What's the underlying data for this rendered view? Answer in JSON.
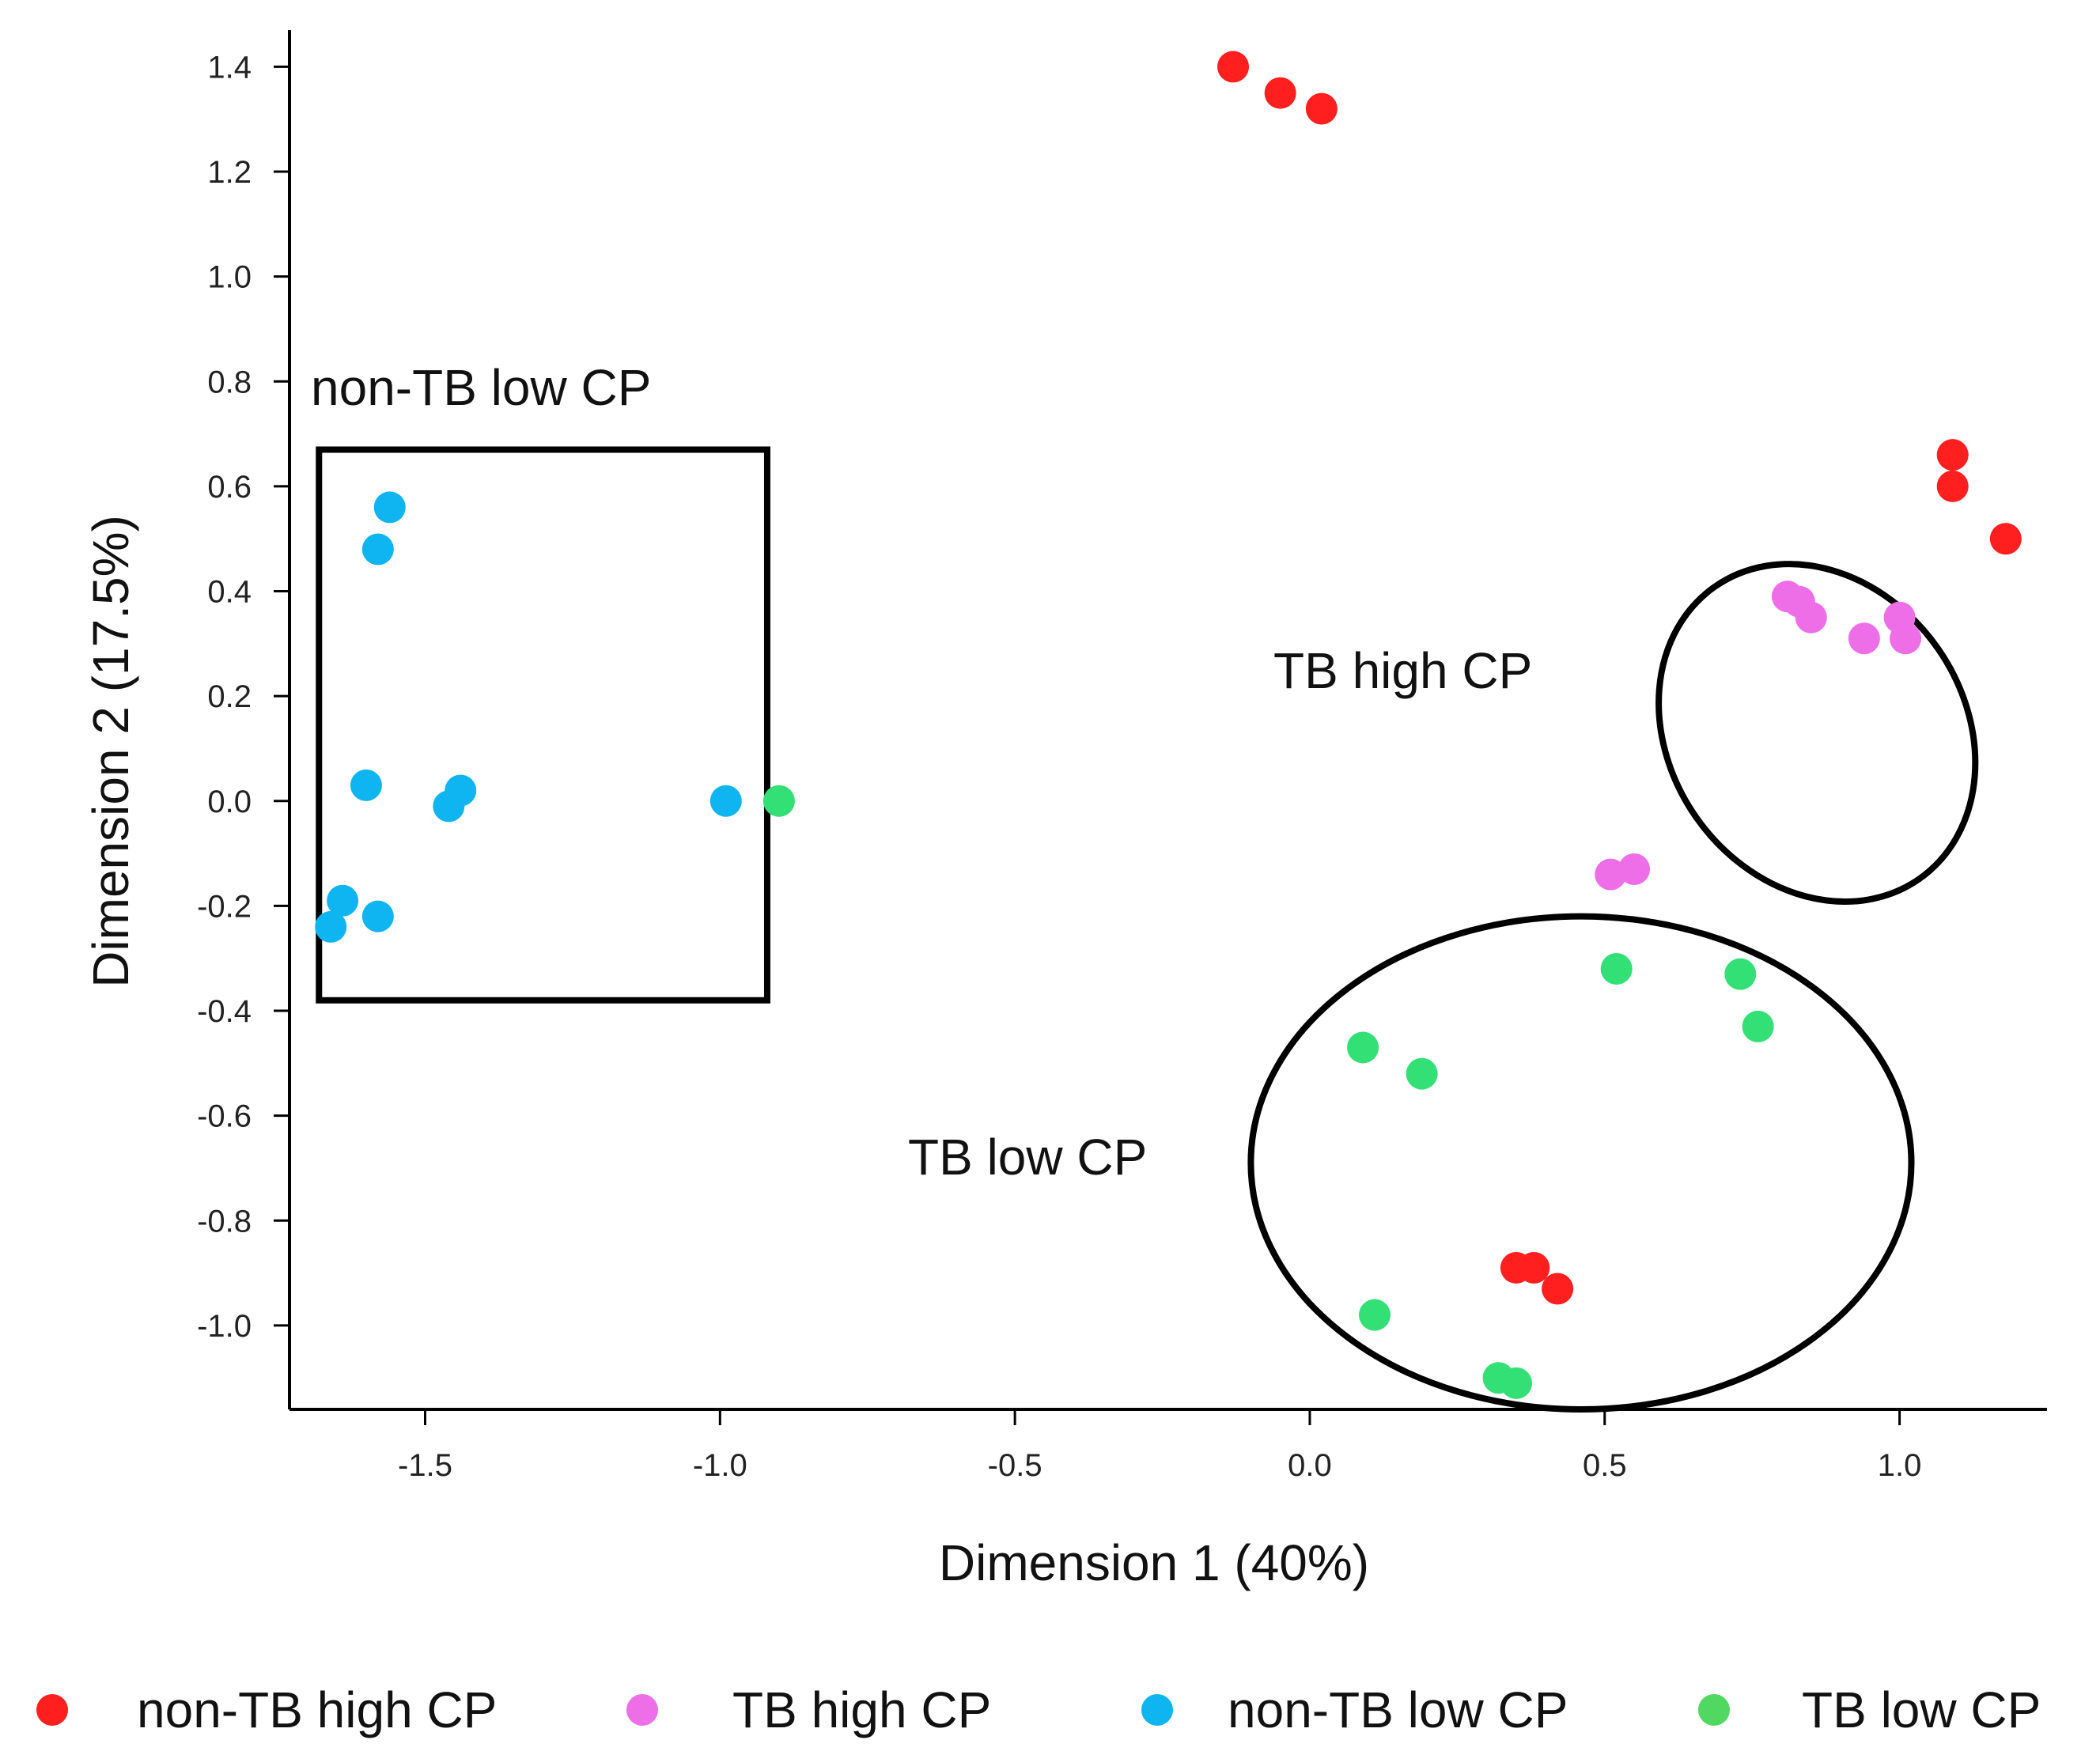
{
  "chart_data": {
    "type": "scatter",
    "title": "",
    "xlabel": "Dimension 1 (40%)",
    "ylabel": "Dimension 2 (17.5%)",
    "xlim": [
      -1.73,
      1.25
    ],
    "ylim": [
      -1.16,
      1.47
    ],
    "xticks": [
      -1.5,
      -1.0,
      -0.5,
      0.0,
      0.5,
      1.0
    ],
    "xtick_labels": [
      "-1.5",
      "-1.0",
      "-0.5",
      "0.0",
      "0.5",
      "1.0"
    ],
    "yticks": [
      1.4,
      1.2,
      1.0,
      0.8,
      0.6,
      0.4,
      0.2,
      0.0,
      -0.2,
      -0.4,
      -0.6,
      -0.8,
      -1.0
    ],
    "ytick_labels": [
      "1.4",
      "1.2",
      "1.0",
      "0.8",
      "0.6",
      "0.4",
      "0.2",
      "0.0",
      "-0.2",
      "-0.4",
      "-0.6",
      "-0.8",
      "-1.0"
    ],
    "grid": false,
    "legend_position": "bottom",
    "series": [
      {
        "name": "non-TB high CP",
        "color": "#ff1f1f",
        "points": [
          [
            -0.13,
            1.4
          ],
          [
            -0.05,
            1.35
          ],
          [
            0.02,
            1.32
          ],
          [
            1.09,
            0.66
          ],
          [
            1.09,
            0.6
          ],
          [
            1.18,
            0.5
          ],
          [
            0.35,
            -0.89
          ],
          [
            0.38,
            -0.89
          ],
          [
            0.42,
            -0.93
          ]
        ]
      },
      {
        "name": "TB high CP",
        "color": "#ee6ee8",
        "points": [
          [
            0.81,
            0.39
          ],
          [
            0.83,
            0.38
          ],
          [
            0.85,
            0.35
          ],
          [
            0.94,
            0.31
          ],
          [
            1.0,
            0.35
          ],
          [
            1.01,
            0.31
          ],
          [
            0.51,
            -0.14
          ],
          [
            0.55,
            -0.13
          ]
        ]
      },
      {
        "name": "non-TB low CP",
        "color": "#0fb5f0",
        "points": [
          [
            -1.56,
            0.56
          ],
          [
            -1.58,
            0.48
          ],
          [
            -1.6,
            0.03
          ],
          [
            -1.44,
            0.02
          ],
          [
            -1.46,
            -0.01
          ],
          [
            -0.99,
            0.0
          ],
          [
            -1.64,
            -0.19
          ],
          [
            -1.58,
            -0.22
          ],
          [
            -1.66,
            -0.24
          ]
        ]
      },
      {
        "name": "TB low CP",
        "color": "#33e075",
        "points": [
          [
            -0.9,
            0.0
          ],
          [
            0.52,
            -0.32
          ],
          [
            0.73,
            -0.33
          ],
          [
            0.76,
            -0.43
          ],
          [
            0.09,
            -0.47
          ],
          [
            0.19,
            -0.52
          ],
          [
            0.11,
            -0.98
          ],
          [
            0.32,
            -1.1
          ],
          [
            0.35,
            -1.11
          ]
        ]
      }
    ],
    "legend": [
      {
        "label": "non-TB high CP",
        "color": "#ff1f1f"
      },
      {
        "label": "TB high CP",
        "color": "#ee6ee8"
      },
      {
        "label": "non-TB low CP",
        "color": "#0fb5f0"
      },
      {
        "label": "TB low CP",
        "color": "#50d860"
      }
    ],
    "annotations": [
      {
        "text": "non-TB low CP",
        "shape": "rectangle",
        "region_x": [
          -1.68,
          -0.92
        ],
        "region_y": [
          -0.38,
          0.67
        ]
      },
      {
        "text": "TB high CP",
        "shape": "ellipse",
        "center": [
          0.86,
          0.13
        ],
        "semi_axes": [
          0.25,
          0.34
        ],
        "rotation_deg": 35
      },
      {
        "text": "TB low CP",
        "shape": "ellipse",
        "center": [
          0.46,
          -0.69
        ],
        "semi_axes": [
          0.56,
          0.47
        ],
        "rotation_deg": 0
      }
    ]
  }
}
